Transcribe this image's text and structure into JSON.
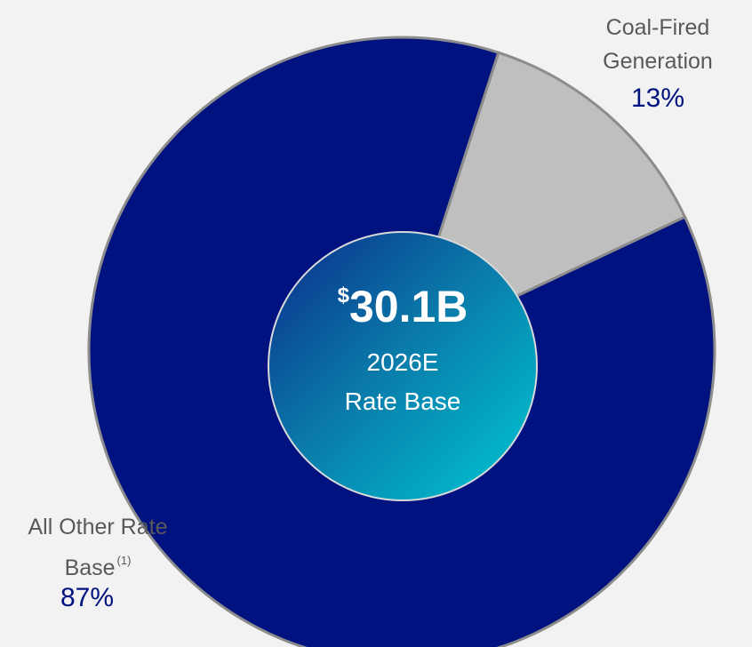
{
  "chart_data": {
    "type": "pie",
    "categories": [
      "Coal-Fired Generation",
      "All Other Rate Base"
    ],
    "values": [
      13,
      87
    ],
    "value_labels": [
      "13%",
      "87%"
    ],
    "colors": [
      "#bfbfbf",
      "#00127f"
    ],
    "footnote": "(1)",
    "center_prefix": "$",
    "center_title": "30.1B",
    "center_lines": [
      "2026E",
      "Rate Base"
    ]
  }
}
